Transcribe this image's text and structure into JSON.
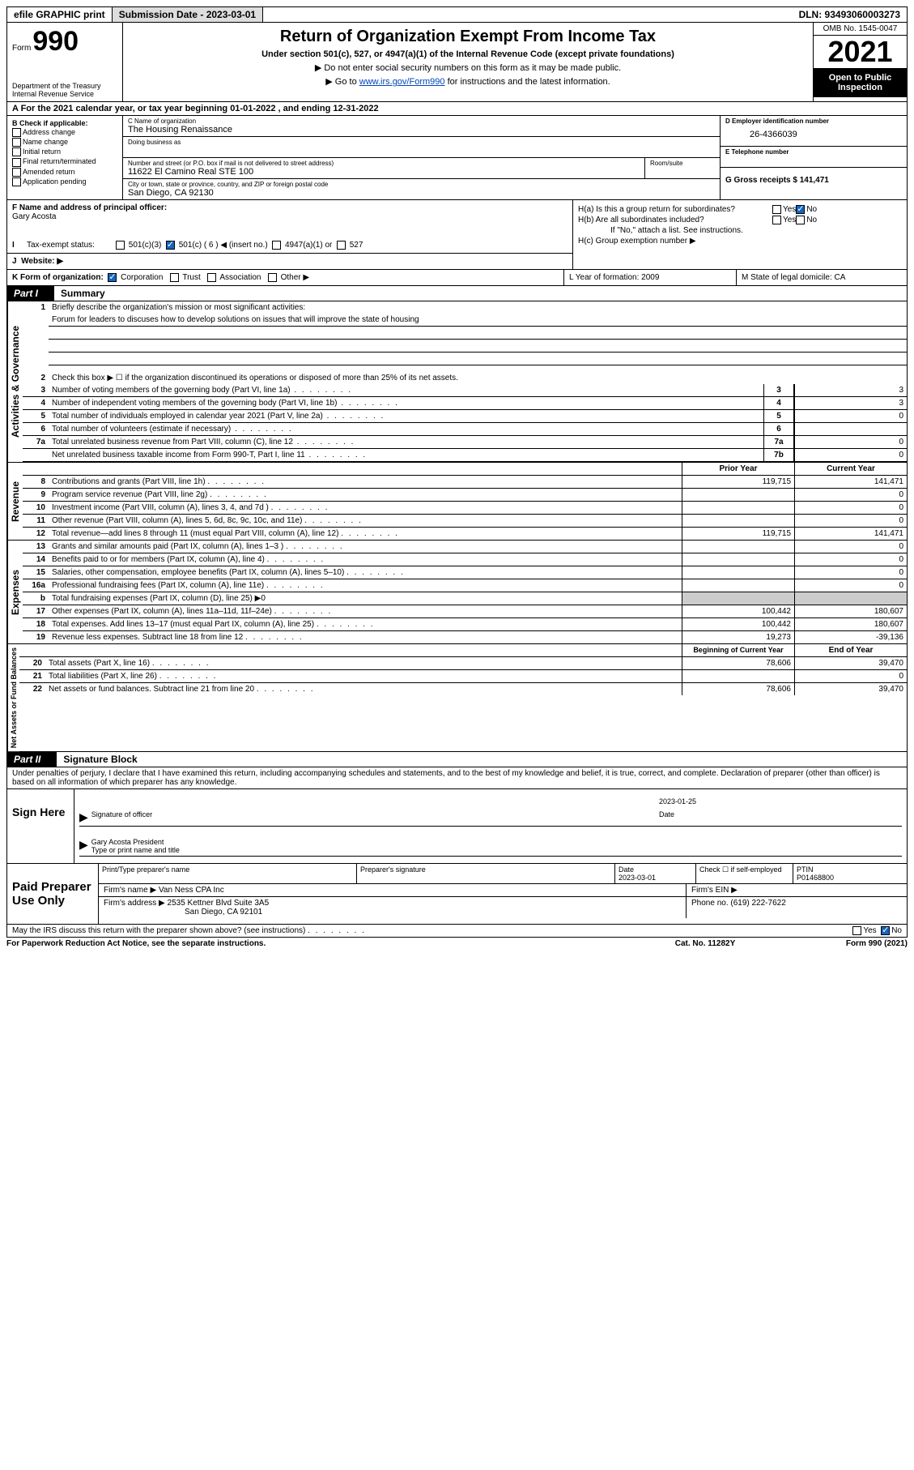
{
  "topbar": {
    "efile": "efile GRAPHIC print",
    "submission_label": "Submission Date - 2023-03-01",
    "dln": "DLN: 93493060003273"
  },
  "header": {
    "form_label": "Form",
    "form_number": "990",
    "dept": "Department of the Treasury\nInternal Revenue Service",
    "title": "Return of Organization Exempt From Income Tax",
    "subtitle": "Under section 501(c), 527, or 4947(a)(1) of the Internal Revenue Code (except private foundations)",
    "note1": "▶ Do not enter social security numbers on this form as it may be made public.",
    "note2_pre": "▶ Go to ",
    "note2_link": "www.irs.gov/Form990",
    "note2_post": " for instructions and the latest information.",
    "omb": "OMB No. 1545-0047",
    "year": "2021",
    "open": "Open to Public Inspection"
  },
  "section_a": "A For the 2021 calendar year, or tax year beginning 01-01-2022   , and ending 12-31-2022",
  "col_b": {
    "title": "B Check if applicable:",
    "items": [
      "Address change",
      "Name change",
      "Initial return",
      "Final return/terminated",
      "Amended return",
      "Application pending"
    ]
  },
  "org": {
    "c_label": "C Name of organization",
    "name": "The Housing Renaissance",
    "dba_label": "Doing business as",
    "addr_label": "Number and street (or P.O. box if mail is not delivered to street address)",
    "room_label": "Room/suite",
    "addr": "11622 El Camino Real STE 100",
    "city_label": "City or town, state or province, country, and ZIP or foreign postal code",
    "city": "San Diego, CA  92130"
  },
  "right": {
    "d_label": "D Employer identification number",
    "ein": "26-4366039",
    "e_label": "E Telephone number",
    "g_label": "G Gross receipts $ 141,471"
  },
  "fh": {
    "f_label": "F Name and address of principal officer:",
    "f_name": "Gary Acosta",
    "ha": "H(a)  Is this a group return for subordinates?",
    "hb": "H(b)  Are all subordinates included?",
    "hb_note": "If \"No,\" attach a list. See instructions.",
    "hc": "H(c)  Group exemption number ▶"
  },
  "status": {
    "i_label": "Tax-exempt status:",
    "opts": [
      "501(c)(3)",
      "501(c) ( 6 ) ◀ (insert no.)",
      "4947(a)(1) or",
      "527"
    ],
    "j_label": "Website: ▶"
  },
  "k_line": {
    "label": "K Form of organization:",
    "opts": [
      "Corporation",
      "Trust",
      "Association",
      "Other ▶"
    ],
    "l": "L Year of formation: 2009",
    "m": "M State of legal domicile: CA"
  },
  "part1": {
    "hdr": "Part I",
    "title": "Summary"
  },
  "gov": {
    "side": "Activities & Governance",
    "l1": "Briefly describe the organization's mission or most significant activities:",
    "l1_val": "Forum for leaders to discuses how to develop solutions on issues that will improve the state of housing",
    "l2": "Check this box ▶ ☐  if the organization discontinued its operations or disposed of more than 25% of its net assets.",
    "rows": [
      {
        "n": "3",
        "t": "Number of voting members of the governing body (Part VI, line 1a)",
        "k": "3",
        "v": "3"
      },
      {
        "n": "4",
        "t": "Number of independent voting members of the governing body (Part VI, line 1b)",
        "k": "4",
        "v": "3"
      },
      {
        "n": "5",
        "t": "Total number of individuals employed in calendar year 2021 (Part V, line 2a)",
        "k": "5",
        "v": "0"
      },
      {
        "n": "6",
        "t": "Total number of volunteers (estimate if necessary)",
        "k": "6",
        "v": ""
      },
      {
        "n": "7a",
        "t": "Total unrelated business revenue from Part VIII, column (C), line 12",
        "k": "7a",
        "v": "0"
      },
      {
        "n": "",
        "t": "Net unrelated business taxable income from Form 990-T, Part I, line 11",
        "k": "7b",
        "v": "0"
      }
    ]
  },
  "rev": {
    "side": "Revenue",
    "hdr_prior": "Prior Year",
    "hdr_curr": "Current Year",
    "rows": [
      {
        "n": "8",
        "t": "Contributions and grants (Part VIII, line 1h)",
        "p": "119,715",
        "c": "141,471"
      },
      {
        "n": "9",
        "t": "Program service revenue (Part VIII, line 2g)",
        "p": "",
        "c": "0"
      },
      {
        "n": "10",
        "t": "Investment income (Part VIII, column (A), lines 3, 4, and 7d )",
        "p": "",
        "c": "0"
      },
      {
        "n": "11",
        "t": "Other revenue (Part VIII, column (A), lines 5, 6d, 8c, 9c, 10c, and 11e)",
        "p": "",
        "c": "0"
      },
      {
        "n": "12",
        "t": "Total revenue—add lines 8 through 11 (must equal Part VIII, column (A), line 12)",
        "p": "119,715",
        "c": "141,471"
      }
    ]
  },
  "exp": {
    "side": "Expenses",
    "rows": [
      {
        "n": "13",
        "t": "Grants and similar amounts paid (Part IX, column (A), lines 1–3 )",
        "p": "",
        "c": "0"
      },
      {
        "n": "14",
        "t": "Benefits paid to or for members (Part IX, column (A), line 4)",
        "p": "",
        "c": "0"
      },
      {
        "n": "15",
        "t": "Salaries, other compensation, employee benefits (Part IX, column (A), lines 5–10)",
        "p": "",
        "c": "0"
      },
      {
        "n": "16a",
        "t": "Professional fundraising fees (Part IX, column (A), line 11e)",
        "p": "",
        "c": "0"
      },
      {
        "n": "b",
        "t": "Total fundraising expenses (Part IX, column (D), line 25) ▶0",
        "p": "grey",
        "c": "grey"
      },
      {
        "n": "17",
        "t": "Other expenses (Part IX, column (A), lines 11a–11d, 11f–24e)",
        "p": "100,442",
        "c": "180,607"
      },
      {
        "n": "18",
        "t": "Total expenses. Add lines 13–17 (must equal Part IX, column (A), line 25)",
        "p": "100,442",
        "c": "180,607"
      },
      {
        "n": "19",
        "t": "Revenue less expenses. Subtract line 18 from line 12",
        "p": "19,273",
        "c": "-39,136"
      }
    ]
  },
  "net": {
    "side": "Net Assets or Fund Balances",
    "hdr_beg": "Beginning of Current Year",
    "hdr_end": "End of Year",
    "rows": [
      {
        "n": "20",
        "t": "Total assets (Part X, line 16)",
        "p": "78,606",
        "c": "39,470"
      },
      {
        "n": "21",
        "t": "Total liabilities (Part X, line 26)",
        "p": "",
        "c": "0"
      },
      {
        "n": "22",
        "t": "Net assets or fund balances. Subtract line 21 from line 20",
        "p": "78,606",
        "c": "39,470"
      }
    ]
  },
  "part2": {
    "hdr": "Part II",
    "title": "Signature Block",
    "decl": "Under penalties of perjury, I declare that I have examined this return, including accompanying schedules and statements, and to the best of my knowledge and belief, it is true, correct, and complete. Declaration of preparer (other than officer) is based on all information of which preparer has any knowledge."
  },
  "sign": {
    "label": "Sign Here",
    "sig_label": "Signature of officer",
    "date_label": "Date",
    "date": "2023-01-25",
    "name": "Gary Acosta  President",
    "name_label": "Type or print name and title"
  },
  "prep": {
    "label": "Paid Preparer Use Only",
    "h1": "Print/Type preparer's name",
    "h2": "Preparer's signature",
    "h3": "Date",
    "h3v": "2023-03-01",
    "h4": "Check ☐ if self-employed",
    "h5": "PTIN",
    "h5v": "P01468800",
    "firm_label": "Firm's name    ▶",
    "firm": "Van Ness CPA Inc",
    "ein_label": "Firm's EIN ▶",
    "addr_label": "Firm's address ▶",
    "addr1": "2535 Kettner Blvd Suite 3A5",
    "addr2": "San Diego, CA  92101",
    "phone_label": "Phone no. (619) 222-7622"
  },
  "footer": {
    "discuss": "May the IRS discuss this return with the preparer shown above? (see instructions)",
    "pra": "For Paperwork Reduction Act Notice, see the separate instructions.",
    "cat": "Cat. No. 11282Y",
    "form": "Form 990 (2021)"
  }
}
